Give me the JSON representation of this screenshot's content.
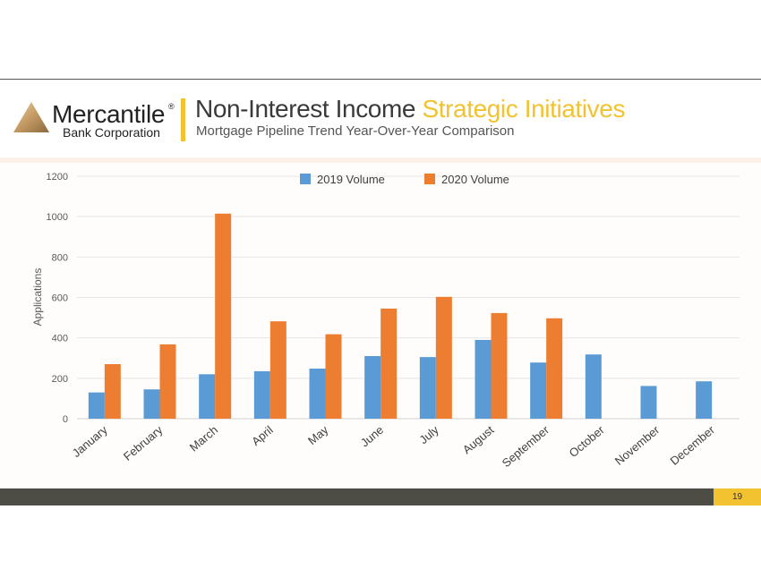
{
  "header": {
    "logo_name": "Mercantile",
    "logo_reg": "®",
    "logo_sub": "Bank Corporation",
    "title_main": "Non-Interest Income ",
    "title_accent": "Strategic Initiatives",
    "subtitle": "Mortgage Pipeline Trend Year-Over-Year Comparison"
  },
  "footer": {
    "page_number": "19"
  },
  "colors": {
    "accent_yellow": "#f2c230",
    "series_2019": "#5b9bd5",
    "series_2020": "#ed7d31",
    "footer_bar": "#4d4d45"
  },
  "chart_data": {
    "type": "bar",
    "categories": [
      "January",
      "February",
      "March",
      "April",
      "May",
      "June",
      "July",
      "August",
      "September",
      "October",
      "November",
      "December"
    ],
    "series": [
      {
        "name": "2019 Volume",
        "color": "#5b9bd5",
        "values": [
          130,
          145,
          220,
          235,
          248,
          310,
          305,
          390,
          278,
          318,
          162,
          185
        ]
      },
      {
        "name": "2020 Volume",
        "color": "#ed7d31",
        "values": [
          270,
          368,
          1015,
          482,
          418,
          545,
          603,
          523,
          497,
          null,
          null,
          null
        ]
      }
    ],
    "ylabel": "Applications",
    "xlabel": "",
    "ylim": [
      0,
      1200
    ],
    "yticks": [
      0,
      200,
      400,
      600,
      800,
      1000,
      1200
    ],
    "grid": true,
    "legend_position": "top-center"
  }
}
